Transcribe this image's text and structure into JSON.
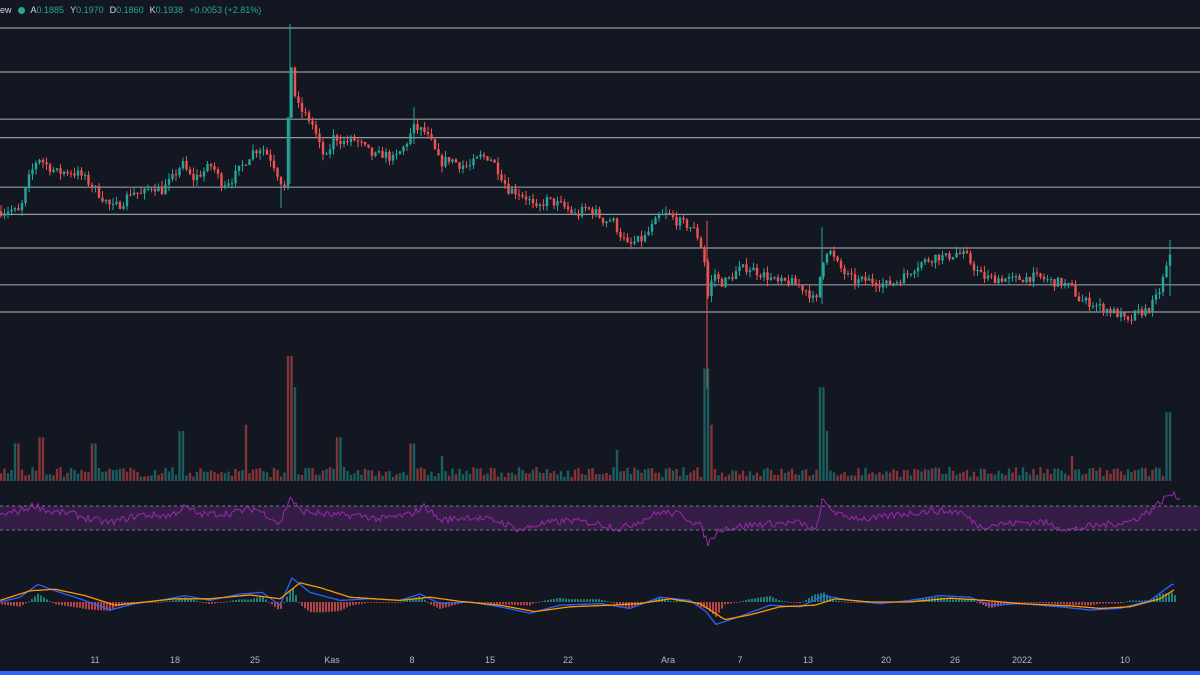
{
  "header": {
    "left_fragment": "ew",
    "open_label": "A",
    "open": "0.1885",
    "high_label": "Y",
    "high": "0.1970",
    "low_label": "D",
    "low": "0.1860",
    "close_label": "K",
    "close": "0.1938",
    "change": "+0.0053 (+2.81%)"
  },
  "colors": {
    "background": "#131722",
    "up": "#26a69a",
    "down": "#ef5350",
    "rsi": "#9c27b0",
    "rsi_band": "#3a1f4a",
    "macd": "#2962ff",
    "signal": "#ff9800",
    "level_line": "#9598a1"
  },
  "x_axis": {
    "ticks": [
      "11",
      "18",
      "25",
      "Kas",
      "8",
      "15",
      "22",
      "Ara",
      "7",
      "13",
      "20",
      "26",
      "2022",
      "10"
    ]
  },
  "chart_data": [
    {
      "type": "candlestick",
      "title": "",
      "note": "prices read from the 0.19 area of the header; y axis not shown",
      "y_range": [
        0.16,
        0.46
      ],
      "horizontal_levels": [
        0.4425,
        0.415,
        0.3855,
        0.374,
        0.343,
        0.326,
        0.305,
        0.282,
        0.265
      ],
      "series": [
        {
          "name": "",
          "close_path": [
            [
              0,
              0.328
            ],
            [
              10,
              0.329
            ],
            [
              20,
              0.327
            ],
            [
              28,
              0.347
            ],
            [
              38,
              0.362
            ],
            [
              48,
              0.356
            ],
            [
              58,
              0.352
            ],
            [
              68,
              0.353
            ],
            [
              80,
              0.351
            ],
            [
              92,
              0.344
            ],
            [
              102,
              0.337
            ],
            [
              112,
              0.33
            ],
            [
              122,
              0.333
            ],
            [
              132,
              0.341
            ],
            [
              142,
              0.338
            ],
            [
              152,
              0.344
            ],
            [
              162,
              0.341
            ],
            [
              172,
              0.348
            ],
            [
              182,
              0.358
            ],
            [
              192,
              0.348
            ],
            [
              202,
              0.352
            ],
            [
              212,
              0.357
            ],
            [
              222,
              0.345
            ],
            [
              232,
              0.348
            ],
            [
              242,
              0.356
            ],
            [
              252,
              0.365
            ],
            [
              262,
              0.368
            ],
            [
              272,
              0.36
            ],
            [
              280,
              0.348
            ],
            [
              286,
              0.34
            ],
            [
              290,
              0.427
            ],
            [
              296,
              0.395
            ],
            [
              304,
              0.389
            ],
            [
              312,
              0.383
            ],
            [
              320,
              0.368
            ],
            [
              326,
              0.36
            ],
            [
              334,
              0.375
            ],
            [
              344,
              0.371
            ],
            [
              354,
              0.373
            ],
            [
              364,
              0.368
            ],
            [
              374,
              0.362
            ],
            [
              384,
              0.364
            ],
            [
              394,
              0.36
            ],
            [
              404,
              0.368
            ],
            [
              414,
              0.38
            ],
            [
              424,
              0.378
            ],
            [
              432,
              0.37
            ],
            [
              440,
              0.358
            ],
            [
              450,
              0.361
            ],
            [
              460,
              0.357
            ],
            [
              470,
              0.356
            ],
            [
              480,
              0.362
            ],
            [
              490,
              0.362
            ],
            [
              500,
              0.352
            ],
            [
              508,
              0.342
            ],
            [
              518,
              0.34
            ],
            [
              528,
              0.336
            ],
            [
              536,
              0.328
            ],
            [
              546,
              0.335
            ],
            [
              556,
              0.333
            ],
            [
              566,
              0.33
            ],
            [
              576,
              0.325
            ],
            [
              586,
              0.33
            ],
            [
              596,
              0.327
            ],
            [
              604,
              0.322
            ],
            [
              612,
              0.323
            ],
            [
              620,
              0.314
            ],
            [
              628,
              0.306
            ],
            [
              636,
              0.309
            ],
            [
              644,
              0.311
            ],
            [
              652,
              0.318
            ],
            [
              660,
              0.325
            ],
            [
              668,
              0.326
            ],
            [
              676,
              0.322
            ],
            [
              684,
              0.32
            ],
            [
              692,
              0.318
            ],
            [
              698,
              0.312
            ],
            [
              704,
              0.3
            ],
            [
              708,
              0.275
            ],
            [
              714,
              0.29
            ],
            [
              720,
              0.283
            ],
            [
              728,
              0.285
            ],
            [
              738,
              0.291
            ],
            [
              748,
              0.293
            ],
            [
              758,
              0.29
            ],
            [
              768,
              0.287
            ],
            [
              778,
              0.283
            ],
            [
              788,
              0.284
            ],
            [
              798,
              0.282
            ],
            [
              808,
              0.278
            ],
            [
              816,
              0.27
            ],
            [
              822,
              0.296
            ],
            [
              828,
              0.305
            ],
            [
              836,
              0.296
            ],
            [
              846,
              0.288
            ],
            [
              856,
              0.284
            ],
            [
              866,
              0.285
            ],
            [
              876,
              0.284
            ],
            [
              886,
              0.282
            ],
            [
              896,
              0.284
            ],
            [
              906,
              0.288
            ],
            [
              916,
              0.294
            ],
            [
              926,
              0.297
            ],
            [
              936,
              0.3
            ],
            [
              946,
              0.299
            ],
            [
              956,
              0.302
            ],
            [
              966,
              0.3
            ],
            [
              974,
              0.293
            ],
            [
              982,
              0.287
            ],
            [
              992,
              0.286
            ],
            [
              1002,
              0.286
            ],
            [
              1012,
              0.285
            ],
            [
              1022,
              0.286
            ],
            [
              1032,
              0.287
            ],
            [
              1042,
              0.286
            ],
            [
              1052,
              0.284
            ],
            [
              1062,
              0.283
            ],
            [
              1072,
              0.28
            ],
            [
              1080,
              0.272
            ],
            [
              1090,
              0.271
            ],
            [
              1100,
              0.268
            ],
            [
              1110,
              0.266
            ],
            [
              1120,
              0.263
            ],
            [
              1128,
              0.258
            ],
            [
              1136,
              0.264
            ],
            [
              1146,
              0.266
            ],
            [
              1154,
              0.271
            ],
            [
              1160,
              0.279
            ],
            [
              1166,
              0.292
            ],
            [
              1172,
              0.302
            ]
          ]
        }
      ]
    },
    {
      "type": "bar",
      "title": "",
      "series_name": "volume",
      "spikes": [
        [
          18,
          0.3
        ],
        [
          40,
          0.35
        ],
        [
          95,
          0.3
        ],
        [
          181,
          0.4
        ],
        [
          246,
          0.45
        ],
        [
          290,
          1.0
        ],
        [
          293,
          0.75
        ],
        [
          340,
          0.35
        ],
        [
          413,
          0.3
        ],
        [
          442,
          0.2
        ],
        [
          617,
          0.25
        ],
        [
          706,
          0.9
        ],
        [
          709,
          0.45
        ],
        [
          822,
          0.75
        ],
        [
          826,
          0.4
        ],
        [
          1072,
          0.2
        ],
        [
          1168,
          0.55
        ]
      ]
    },
    {
      "type": "line",
      "title": "",
      "series_name": "RSI",
      "y_range": [
        0,
        100
      ],
      "bands": [
        30,
        70
      ],
      "values": [
        [
          0,
          55
        ],
        [
          20,
          62
        ],
        [
          35,
          72
        ],
        [
          50,
          60
        ],
        [
          70,
          58
        ],
        [
          90,
          48
        ],
        [
          110,
          42
        ],
        [
          140,
          55
        ],
        [
          170,
          54
        ],
        [
          185,
          68
        ],
        [
          200,
          56
        ],
        [
          230,
          58
        ],
        [
          255,
          66
        ],
        [
          270,
          52
        ],
        [
          280,
          40
        ],
        [
          290,
          85
        ],
        [
          300,
          62
        ],
        [
          330,
          55
        ],
        [
          360,
          54
        ],
        [
          380,
          48
        ],
        [
          410,
          56
        ],
        [
          425,
          70
        ],
        [
          440,
          46
        ],
        [
          470,
          52
        ],
        [
          500,
          44
        ],
        [
          520,
          30
        ],
        [
          540,
          40
        ],
        [
          570,
          46
        ],
        [
          600,
          40
        ],
        [
          620,
          32
        ],
        [
          640,
          45
        ],
        [
          660,
          60
        ],
        [
          680,
          56
        ],
        [
          700,
          38
        ],
        [
          708,
          8
        ],
        [
          720,
          32
        ],
        [
          760,
          40
        ],
        [
          800,
          42
        ],
        [
          816,
          28
        ],
        [
          822,
          78
        ],
        [
          840,
          54
        ],
        [
          870,
          48
        ],
        [
          900,
          56
        ],
        [
          930,
          62
        ],
        [
          960,
          60
        ],
        [
          980,
          36
        ],
        [
          1000,
          40
        ],
        [
          1040,
          44
        ],
        [
          1070,
          30
        ],
        [
          1090,
          36
        ],
        [
          1110,
          40
        ],
        [
          1130,
          44
        ],
        [
          1150,
          62
        ],
        [
          1170,
          90
        ],
        [
          1180,
          84
        ]
      ]
    },
    {
      "type": "line",
      "title": "",
      "series_name": "MACD",
      "y_range": [
        -1,
        1
      ],
      "macd": [
        [
          0,
          0.0
        ],
        [
          20,
          0.15
        ],
        [
          38,
          0.55
        ],
        [
          55,
          0.35
        ],
        [
          80,
          0.1
        ],
        [
          110,
          -0.25
        ],
        [
          135,
          -0.05
        ],
        [
          160,
          0.05
        ],
        [
          185,
          0.2
        ],
        [
          210,
          0.05
        ],
        [
          240,
          0.25
        ],
        [
          262,
          0.3
        ],
        [
          280,
          -0.1
        ],
        [
          292,
          0.75
        ],
        [
          310,
          0.3
        ],
        [
          340,
          0.05
        ],
        [
          370,
          0.1
        ],
        [
          400,
          0.05
        ],
        [
          420,
          0.25
        ],
        [
          440,
          -0.05
        ],
        [
          470,
          0.0
        ],
        [
          500,
          -0.15
        ],
        [
          530,
          -0.35
        ],
        [
          560,
          -0.1
        ],
        [
          600,
          -0.05
        ],
        [
          630,
          -0.2
        ],
        [
          660,
          0.15
        ],
        [
          690,
          0.05
        ],
        [
          706,
          -0.3
        ],
        [
          716,
          -0.7
        ],
        [
          740,
          -0.45
        ],
        [
          770,
          -0.1
        ],
        [
          800,
          -0.15
        ],
        [
          824,
          0.2
        ],
        [
          850,
          0.05
        ],
        [
          880,
          -0.05
        ],
        [
          910,
          0.05
        ],
        [
          940,
          0.2
        ],
        [
          970,
          0.15
        ],
        [
          990,
          -0.1
        ],
        [
          1020,
          -0.05
        ],
        [
          1060,
          -0.15
        ],
        [
          1090,
          -0.25
        ],
        [
          1120,
          -0.2
        ],
        [
          1150,
          0.05
        ],
        [
          1172,
          0.55
        ]
      ],
      "signal": [
        [
          0,
          0.05
        ],
        [
          30,
          0.35
        ],
        [
          55,
          0.4
        ],
        [
          85,
          0.2
        ],
        [
          115,
          -0.1
        ],
        [
          145,
          0.0
        ],
        [
          175,
          0.1
        ],
        [
          210,
          0.1
        ],
        [
          250,
          0.22
        ],
        [
          280,
          0.1
        ],
        [
          300,
          0.6
        ],
        [
          320,
          0.45
        ],
        [
          350,
          0.15
        ],
        [
          400,
          0.05
        ],
        [
          430,
          0.15
        ],
        [
          460,
          0.02
        ],
        [
          500,
          -0.1
        ],
        [
          535,
          -0.3
        ],
        [
          570,
          -0.15
        ],
        [
          610,
          -0.1
        ],
        [
          640,
          -0.05
        ],
        [
          670,
          0.1
        ],
        [
          700,
          -0.05
        ],
        [
          725,
          -0.55
        ],
        [
          750,
          -0.4
        ],
        [
          780,
          -0.15
        ],
        [
          815,
          -0.1
        ],
        [
          835,
          0.1
        ],
        [
          870,
          0.0
        ],
        [
          910,
          0.0
        ],
        [
          950,
          0.12
        ],
        [
          985,
          0.05
        ],
        [
          1020,
          -0.05
        ],
        [
          1070,
          -0.12
        ],
        [
          1100,
          -0.2
        ],
        [
          1130,
          -0.15
        ],
        [
          1160,
          0.1
        ],
        [
          1175,
          0.4
        ]
      ]
    }
  ]
}
